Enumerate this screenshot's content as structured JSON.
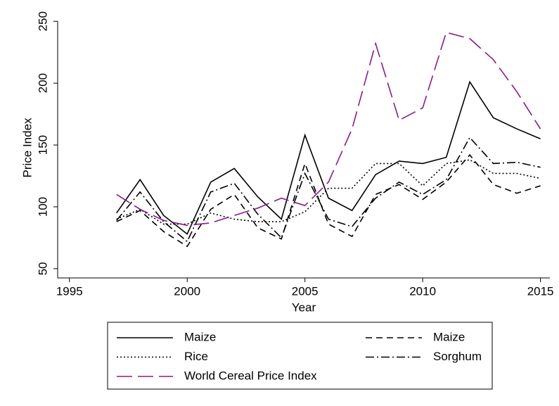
{
  "chart_data": {
    "type": "line",
    "x_label": "Year",
    "y_label": "Price Index",
    "x": [
      1997,
      1998,
      1999,
      2000,
      2001,
      2002,
      2003,
      2004,
      2005,
      2006,
      2007,
      2008,
      2009,
      2010,
      2011,
      2012,
      2013,
      2014,
      2015
    ],
    "series": [
      {
        "name": "Maize",
        "color": "#000000",
        "style": "solid",
        "values": [
          95,
          122,
          93,
          78,
          120,
          131,
          108,
          90,
          158,
          107,
          97,
          126,
          137,
          135,
          140,
          201,
          172,
          163,
          155
        ]
      },
      {
        "name": "Maize",
        "color": "#000000",
        "style": "dashed",
        "values": [
          88,
          97,
          80,
          68,
          98,
          110,
          83,
          74,
          135,
          86,
          76,
          110,
          118,
          106,
          120,
          142,
          118,
          111,
          117
        ]
      },
      {
        "name": "Rice",
        "color": "#000000",
        "style": "dotted",
        "values": [
          90,
          98,
          86,
          86,
          95,
          90,
          88,
          88,
          96,
          115,
          115,
          135,
          135,
          117,
          135,
          138,
          127,
          127,
          123
        ]
      },
      {
        "name": "Sorghum",
        "color": "#000000",
        "style": "dashdot",
        "values": [
          89,
          112,
          88,
          72,
          112,
          119,
          94,
          75,
          127,
          90,
          84,
          107,
          120,
          110,
          122,
          156,
          135,
          136,
          132
        ]
      },
      {
        "name": "World Cereal Price Index",
        "color": "#8b1a89",
        "style": "longdash",
        "values": [
          110,
          98,
          89,
          85,
          87,
          93,
          99,
          107,
          101,
          120,
          163,
          232,
          170,
          180,
          241,
          236,
          219,
          193,
          163
        ]
      }
    ],
    "xlim": [
      1994.5,
      2015.4
    ],
    "xticks": [
      1995,
      2000,
      2005,
      2010,
      2015
    ],
    "ylim": [
      42.5,
      253
    ],
    "yticks": [
      50,
      100,
      150,
      200,
      250
    ],
    "grid": false,
    "legend": "bottom"
  }
}
